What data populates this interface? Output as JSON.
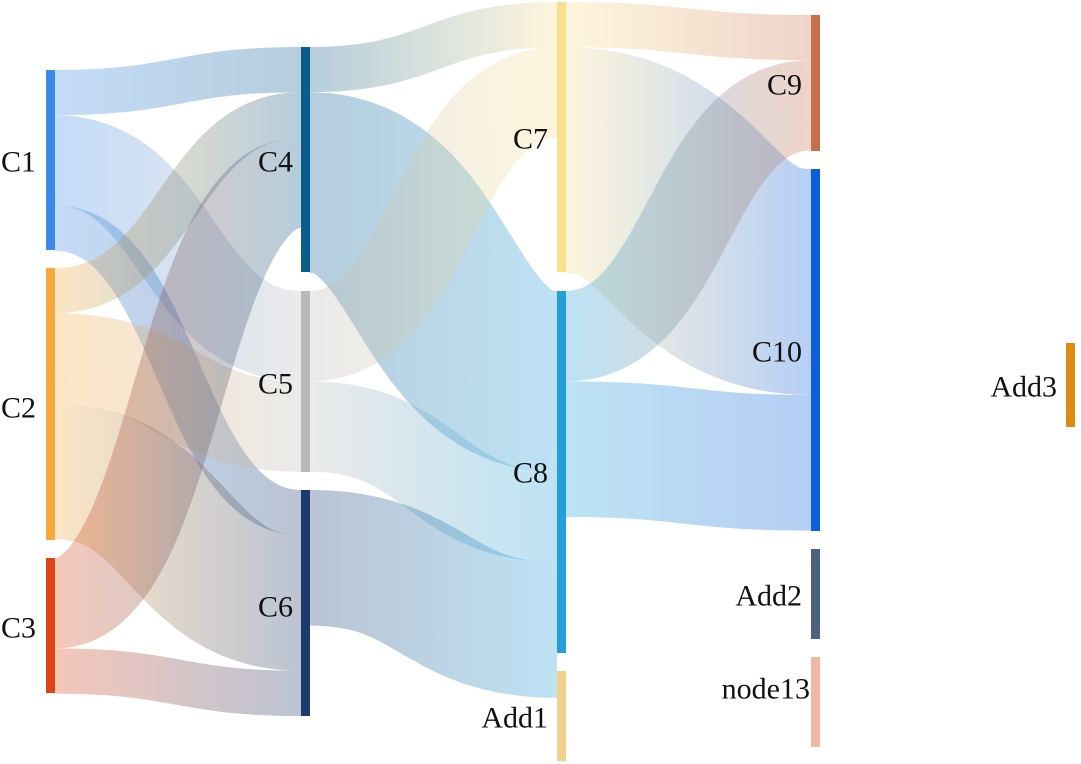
{
  "nodes": [
    {
      "id": "C1",
      "label": "C1",
      "color": "#3b8ae8"
    },
    {
      "id": "C2",
      "label": "C2",
      "color": "#f8a93e"
    },
    {
      "id": "C3",
      "label": "C3",
      "color": "#dd4515"
    },
    {
      "id": "C4",
      "label": "C4",
      "color": "#0b5b8c"
    },
    {
      "id": "C5",
      "label": "C5",
      "color": "#b9b9b9"
    },
    {
      "id": "C6",
      "label": "C6",
      "color": "#1c3a6c"
    },
    {
      "id": "C7",
      "label": "C7",
      "color": "#fbe08c"
    },
    {
      "id": "C8",
      "label": "C8",
      "color": "#23a0dc"
    },
    {
      "id": "Add1",
      "label": "Add1",
      "color": "#f2d08c"
    },
    {
      "id": "C9",
      "label": "C9",
      "color": "#c8704c"
    },
    {
      "id": "C10",
      "label": "C10",
      "color": "#0b5edc"
    },
    {
      "id": "Add2",
      "label": "Add2",
      "color": "#4c6080"
    },
    {
      "id": "node13",
      "label": "node13",
      "color": "#f0b8a4"
    },
    {
      "id": "Add3",
      "label": "Add3",
      "color": "#e08a14"
    }
  ],
  "links": [
    {
      "source": "C1",
      "target": "C4",
      "value": 1
    },
    {
      "source": "C1",
      "target": "C5",
      "value": 2
    },
    {
      "source": "C1",
      "target": "C6",
      "value": 1
    },
    {
      "source": "C2",
      "target": "C4",
      "value": 1
    },
    {
      "source": "C2",
      "target": "C5",
      "value": 2
    },
    {
      "source": "C2",
      "target": "C6",
      "value": 3
    },
    {
      "source": "C3",
      "target": "C4",
      "value": 2
    },
    {
      "source": "C3",
      "target": "C6",
      "value": 1
    },
    {
      "source": "C4",
      "target": "C7",
      "value": 1
    },
    {
      "source": "C4",
      "target": "C8",
      "value": 4
    },
    {
      "source": "C5",
      "target": "C7",
      "value": 2
    },
    {
      "source": "C5",
      "target": "C8",
      "value": 2
    },
    {
      "source": "C6",
      "target": "C8",
      "value": 3
    },
    {
      "source": "C7",
      "target": "C9",
      "value": 1
    },
    {
      "source": "C7",
      "target": "C10",
      "value": 5
    },
    {
      "source": "C8",
      "target": "C9",
      "value": 2
    },
    {
      "source": "C8",
      "target": "C10",
      "value": 3
    }
  ]
}
